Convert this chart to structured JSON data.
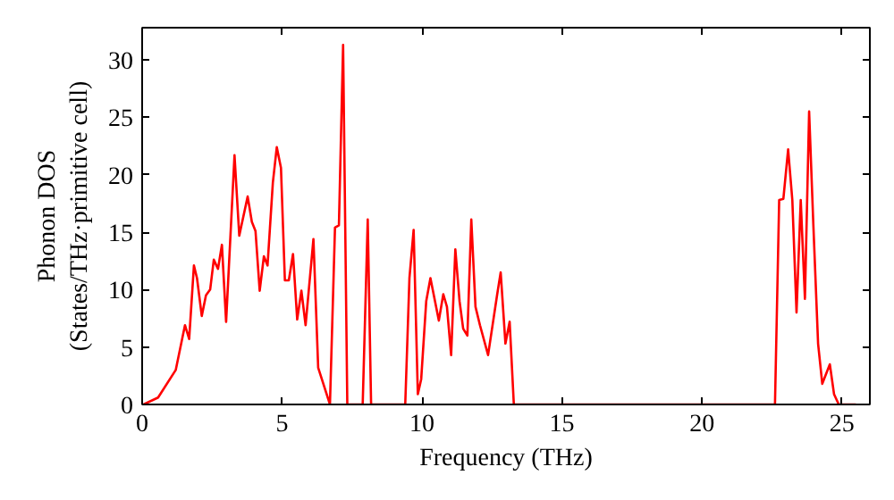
{
  "chart_data": {
    "type": "line",
    "xlabel": "Frequency (THz)",
    "ylabel": "Phonon DOS\n(States/THz·primitive cell)",
    "xlim": [
      0,
      26
    ],
    "ylim": [
      0,
      32.8
    ],
    "xticks": [
      0,
      5,
      10,
      15,
      20,
      25
    ],
    "yticks": [
      0,
      5,
      10,
      15,
      20,
      25,
      30
    ],
    "grid": false,
    "marker": "none",
    "line_style": "solid",
    "series": [
      {
        "color": "#ff0000",
        "x": [
          0.05,
          0.57,
          1.2,
          1.53,
          1.68,
          1.85,
          1.96,
          2.13,
          2.28,
          2.43,
          2.56,
          2.71,
          2.85,
          3.0,
          3.3,
          3.47,
          3.77,
          3.92,
          4.05,
          4.2,
          4.35,
          4.48,
          4.67,
          4.81,
          4.96,
          5.1,
          5.24,
          5.39,
          5.54,
          5.69,
          5.84,
          6.12,
          6.29,
          6.71,
          6.89,
          7.03,
          7.18,
          7.33,
          7.88,
          8.06,
          8.18,
          9.4,
          9.55,
          9.7,
          9.85,
          9.97,
          10.15,
          10.3,
          10.6,
          10.76,
          10.89,
          11.04,
          11.19,
          11.34,
          11.47,
          11.62,
          11.76,
          11.91,
          12.07,
          12.36,
          12.68,
          12.81,
          12.98,
          13.13,
          13.28,
          22.61,
          22.76,
          22.91,
          23.08,
          23.23,
          23.38,
          23.53,
          23.68,
          23.83,
          23.98,
          24.15,
          24.3,
          24.57,
          24.72,
          24.89,
          25.5
        ],
        "values": [
          0,
          0.6,
          3.0,
          6.9,
          5.7,
          12.1,
          11.0,
          7.7,
          9.5,
          10.0,
          12.6,
          11.8,
          13.9,
          7.2,
          21.7,
          14.7,
          18.1,
          15.9,
          15.1,
          9.9,
          12.9,
          12.1,
          19.3,
          22.4,
          20.6,
          10.8,
          10.8,
          13.1,
          7.4,
          9.9,
          6.9,
          14.4,
          3.2,
          0,
          15.4,
          15.6,
          31.3,
          0,
          0,
          16.1,
          0,
          0,
          11.0,
          15.2,
          0.9,
          2.2,
          9.0,
          11.0,
          7.3,
          9.6,
          8.5,
          4.3,
          13.5,
          9.0,
          6.6,
          6.0,
          16.1,
          8.5,
          6.9,
          4.3,
          9.5,
          11.5,
          5.3,
          7.2,
          0,
          0,
          17.8,
          17.9,
          22.2,
          17.8,
          8.0,
          17.8,
          9.2,
          25.5,
          15.7,
          5.3,
          1.8,
          3.5,
          0.9,
          0,
          0
        ]
      }
    ]
  }
}
